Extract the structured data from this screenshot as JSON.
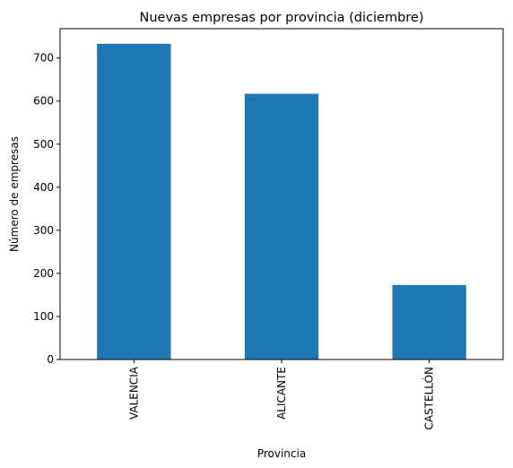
{
  "chart_data": {
    "type": "bar",
    "title": "Nuevas empresas por provincia (diciembre)",
    "xlabel": "Provincia",
    "ylabel": "Número de empresas",
    "categories": [
      "VALENCIA",
      "ALICANTE",
      "CASTELLÓN"
    ],
    "values": [
      733,
      617,
      173
    ],
    "ylim": [
      0,
      768
    ],
    "yticks": [
      0,
      100,
      200,
      300,
      400,
      500,
      600,
      700
    ],
    "ytick_labels": [
      "0",
      "100",
      "200",
      "300",
      "400",
      "500",
      "600",
      "700"
    ],
    "bar_color": "#1f77b4",
    "grid": false,
    "legend": "none",
    "xtick_rotation": "vertical"
  }
}
